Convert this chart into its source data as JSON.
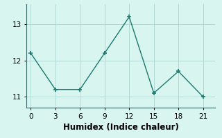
{
  "x": [
    0,
    3,
    6,
    9,
    12,
    15,
    18,
    21
  ],
  "y": [
    12.2,
    11.2,
    11.2,
    12.2,
    13.2,
    11.1,
    11.7,
    11.0
  ],
  "line_color": "#1a7a6e",
  "marker": "+",
  "marker_size": 5,
  "marker_linewidth": 1.2,
  "xlabel": "Humidex (Indice chaleur)",
  "xlim": [
    -0.5,
    22.5
  ],
  "ylim": [
    10.7,
    13.55
  ],
  "yticks": [
    11,
    12,
    13
  ],
  "xticks": [
    0,
    3,
    6,
    9,
    12,
    15,
    18,
    21
  ],
  "bg_color": "#d8f5f0",
  "grid_color": "#b0d8d4",
  "tick_label_fontsize": 7.5,
  "xlabel_fontsize": 8.5,
  "linewidth": 1.0
}
